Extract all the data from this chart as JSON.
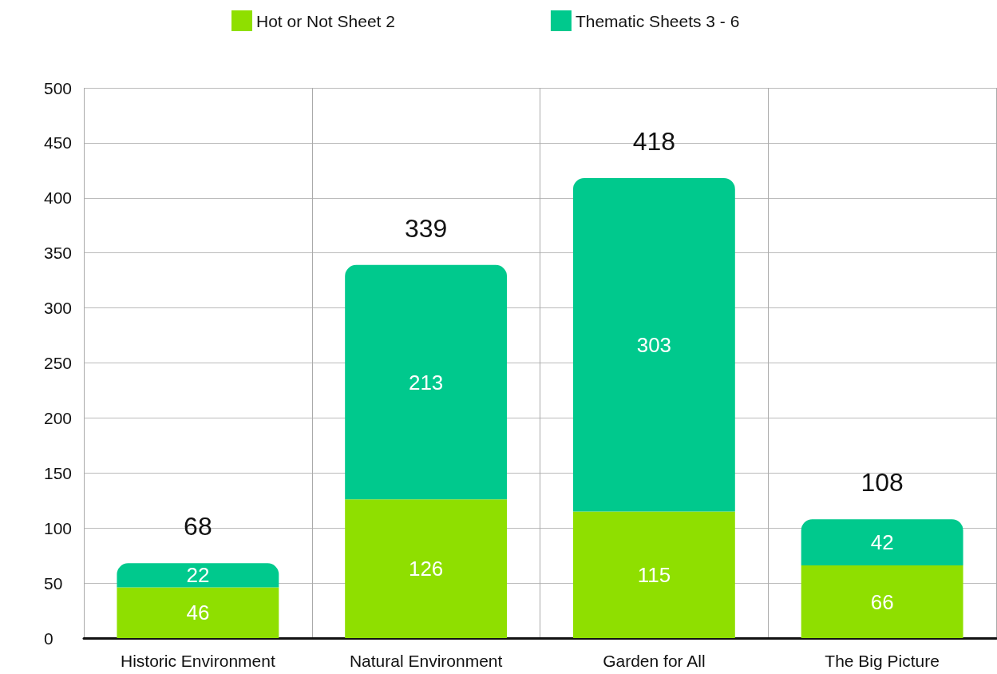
{
  "chart_data": {
    "type": "bar",
    "stacked": true,
    "categories": [
      "Historic Environment",
      "Natural Environment",
      "Garden for All",
      "The Big Picture"
    ],
    "series": [
      {
        "name": "Hot or Not Sheet 2",
        "color": "#8fdf00",
        "values": [
          46,
          126,
          115,
          66
        ]
      },
      {
        "name": "Thematic Sheets 3 - 6",
        "color": "#00c98d",
        "values": [
          22,
          213,
          303,
          42
        ]
      }
    ],
    "totals": [
      "68",
      "339",
      "418",
      "108"
    ],
    "data_labels": true,
    "ylim": [
      0,
      500
    ],
    "yticks": [
      0,
      50,
      100,
      150,
      200,
      250,
      300,
      350,
      400,
      450,
      500
    ],
    "grid": true,
    "legend": "top"
  }
}
